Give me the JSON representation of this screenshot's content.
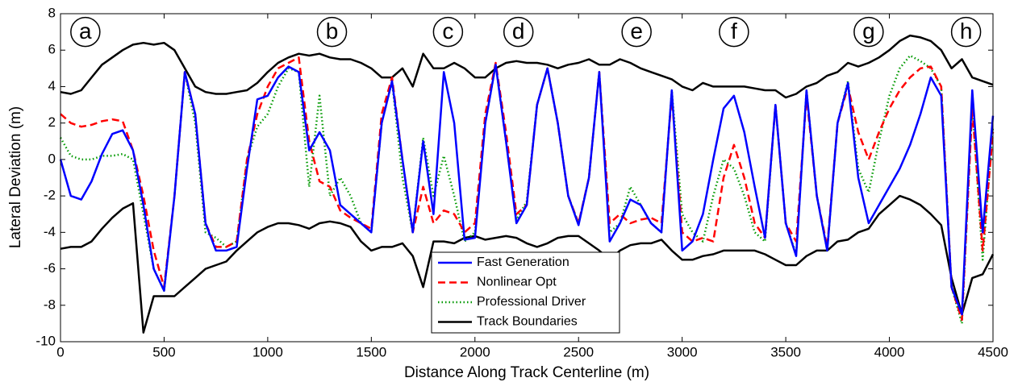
{
  "chart_data": {
    "type": "line",
    "xlabel": "Distance Along Track Centerline (m)",
    "ylabel": "Lateral Deviation (m)",
    "xlim": [
      0,
      4500
    ],
    "ylim": [
      -10,
      8
    ],
    "xticks": [
      0,
      500,
      1000,
      1500,
      2000,
      2500,
      3000,
      3500,
      4000,
      4500
    ],
    "yticks": [
      -10,
      -8,
      -6,
      -4,
      -2,
      0,
      2,
      4,
      6,
      8
    ],
    "legend": "bottom-center",
    "annotations": [
      {
        "text": "a",
        "x": 120,
        "y": 7
      },
      {
        "text": "b",
        "x": 1310,
        "y": 7
      },
      {
        "text": "c",
        "x": 1870,
        "y": 7
      },
      {
        "text": "d",
        "x": 2210,
        "y": 7
      },
      {
        "text": "e",
        "x": 2780,
        "y": 7
      },
      {
        "text": "f",
        "x": 3250,
        "y": 7
      },
      {
        "text": "g",
        "x": 3900,
        "y": 7
      },
      {
        "text": "h",
        "x": 4370,
        "y": 7
      }
    ],
    "x": [
      0,
      50,
      100,
      150,
      200,
      250,
      300,
      350,
      400,
      450,
      500,
      550,
      600,
      650,
      700,
      750,
      800,
      850,
      900,
      950,
      1000,
      1050,
      1100,
      1150,
      1200,
      1250,
      1300,
      1350,
      1400,
      1450,
      1500,
      1550,
      1600,
      1650,
      1700,
      1750,
      1800,
      1850,
      1900,
      1950,
      2000,
      2050,
      2100,
      2150,
      2200,
      2250,
      2300,
      2350,
      2400,
      2450,
      2500,
      2550,
      2600,
      2650,
      2700,
      2750,
      2800,
      2850,
      2900,
      2950,
      3000,
      3050,
      3100,
      3150,
      3200,
      3250,
      3300,
      3350,
      3400,
      3450,
      3500,
      3550,
      3600,
      3650,
      3700,
      3750,
      3800,
      3850,
      3900,
      3950,
      4000,
      4050,
      4100,
      4150,
      4200,
      4250,
      4300,
      4350,
      4400,
      4450,
      4500
    ],
    "series": [
      {
        "name": "Fast Generation",
        "color": "#0000ff",
        "style": "solid",
        "values": [
          0,
          -2,
          -2.2,
          -1.2,
          0.3,
          1.4,
          1.6,
          0.5,
          -2.5,
          -6,
          -7.2,
          -2,
          4.8,
          2.5,
          -3.5,
          -5,
          -5,
          -4.8,
          -0.5,
          3.3,
          3.5,
          4.5,
          5.1,
          4.8,
          0.5,
          1.5,
          0.5,
          -2.5,
          -3,
          -3.5,
          -4,
          2,
          4.3,
          0,
          -4,
          1,
          -3,
          4.8,
          2,
          -4.4,
          -4.3,
          2,
          5.2,
          1,
          -3.5,
          -2.5,
          3,
          5,
          2,
          -2,
          -3.6,
          -1,
          4.8,
          -4.5,
          -3.5,
          -2.2,
          -2.5,
          -3.5,
          -4,
          3.8,
          -5,
          -4.5,
          -3,
          0,
          2.8,
          3.5,
          1.5,
          -1.5,
          -4.3,
          3,
          -3.5,
          -5.3,
          3.8,
          -2,
          -5,
          2,
          4.2,
          -1,
          -3.5,
          -2.5,
          -1.5,
          -0.5,
          0.8,
          2.5,
          4.5,
          3.5,
          -7,
          -8.5,
          3.8,
          -4,
          2.4
        ]
      },
      {
        "name": "Nonlinear Opt",
        "color": "#ff0000",
        "style": "dashed",
        "values": [
          2.5,
          2,
          1.8,
          1.9,
          2.1,
          2.2,
          2.1,
          0.5,
          -2,
          -5,
          -7,
          -2,
          4.8,
          2.5,
          -3.5,
          -4.8,
          -4.8,
          -4.5,
          0,
          2.5,
          4,
          5,
          5.3,
          5.6,
          1,
          -1.2,
          -1.5,
          -2.8,
          -3.2,
          -3.5,
          -3.8,
          2.5,
          4.5,
          0,
          -4,
          -1.5,
          -3.5,
          -2.8,
          -3,
          -4,
          -3.5,
          2.5,
          5.3,
          1.5,
          -3,
          -2.5,
          3,
          5,
          2,
          -2,
          -3.5,
          -1,
          4.8,
          -3.5,
          -3,
          -3.5,
          -3.3,
          -3.2,
          -3.5,
          3.5,
          -4,
          -4.5,
          -4.3,
          -4.5,
          -1,
          0.8,
          -1,
          -3.5,
          -4.3,
          3,
          -3.5,
          -4.5,
          3.5,
          -2,
          -4.8,
          2,
          4,
          1.5,
          0,
          1.5,
          2.8,
          3.8,
          4.5,
          5,
          5.1,
          4,
          -7,
          -8.8,
          2.8,
          -5,
          1.5
        ]
      },
      {
        "name": "Professional Driver",
        "color": "#009900",
        "style": "dotted",
        "values": [
          1.2,
          0.2,
          0,
          0,
          0.2,
          0.2,
          0.3,
          0,
          -3,
          -6,
          -7.2,
          -2,
          4.8,
          2,
          -4,
          -4.3,
          -4.8,
          -4.5,
          0,
          1.8,
          2.5,
          4,
          5,
          4.8,
          -1.5,
          3.5,
          -2,
          -1,
          -2,
          -3.5,
          -4,
          2,
          4.3,
          -1,
          -4,
          1.2,
          -2,
          0.2,
          -2,
          -4.5,
          -4,
          2,
          5.2,
          1,
          -3.3,
          -2.3,
          3,
          5,
          2,
          -2,
          -3.5,
          -1,
          4.8,
          -4,
          -3.5,
          -1.5,
          -2.5,
          -3.5,
          -4,
          3.8,
          -3,
          -4,
          -4.5,
          -2,
          0,
          -0.5,
          -2,
          -4,
          -4.5,
          3,
          -3.5,
          -5.2,
          3.8,
          -2,
          -5,
          2,
          4.3,
          -0.5,
          -1.8,
          1,
          3.5,
          5,
          5.7,
          5.4,
          5,
          4,
          -7,
          -9,
          3,
          -5.5,
          1.8
        ]
      },
      {
        "name": "Track Boundaries",
        "color": "#000000",
        "style": "solid",
        "values": [
          3.7,
          3.6,
          3.8,
          4.5,
          5.2,
          5.6,
          6,
          6.3,
          6.4,
          6.3,
          6.4,
          6,
          5,
          4,
          3.7,
          3.6,
          3.6,
          3.7,
          3.8,
          4.2,
          4.8,
          5.3,
          5.6,
          5.8,
          5.7,
          5.8,
          5.6,
          5.5,
          5.5,
          5.3,
          5,
          4.5,
          4.5,
          5,
          4,
          5.8,
          5,
          5,
          5.3,
          5,
          4.5,
          4.5,
          5,
          5.3,
          5.4,
          5.3,
          5.3,
          5.2,
          5,
          5.2,
          5.3,
          5.5,
          5.2,
          5.2,
          5.5,
          5.3,
          5,
          4.8,
          4.6,
          4.4,
          4,
          3.8,
          4.2,
          4,
          4,
          4,
          4,
          3.9,
          3.8,
          3.8,
          3.4,
          3.6,
          4,
          4.2,
          4.6,
          4.8,
          5.3,
          5.1,
          5.3,
          5.6,
          6,
          6.5,
          6.8,
          6.7,
          6.5,
          6,
          5,
          5.5,
          4.5,
          4.3,
          4.1
        ],
        "lower_values": [
          -4.9,
          -4.8,
          -4.8,
          -4.5,
          -3.8,
          -3.2,
          -2.7,
          -2.4,
          -9.5,
          -7.5,
          -7.5,
          -7.5,
          -7,
          -6.5,
          -6,
          -5.8,
          -5.6,
          -5,
          -4.5,
          -4,
          -3.7,
          -3.5,
          -3.5,
          -3.6,
          -3.8,
          -3.5,
          -3.4,
          -3.5,
          -3.7,
          -4.5,
          -5,
          -4.8,
          -4.8,
          -4.6,
          -5.3,
          -7,
          -4.5,
          -4.5,
          -4.6,
          -4.3,
          -4.2,
          -4.4,
          -4.3,
          -4.2,
          -4.3,
          -4.6,
          -4.8,
          -4.6,
          -4.3,
          -4.2,
          -4.2,
          -4.6,
          -5,
          -5.5,
          -5,
          -4.7,
          -4.6,
          -4.6,
          -4.4,
          -5,
          -5.5,
          -5.5,
          -5.3,
          -5.2,
          -5,
          -5,
          -5,
          -5,
          -5.2,
          -5.5,
          -5.8,
          -5.8,
          -5.3,
          -5,
          -5,
          -4.5,
          -4.4,
          -4,
          -3.8,
          -3,
          -2.5,
          -2,
          -2.2,
          -2.5,
          -3,
          -3.6,
          -6.5,
          -8.5,
          -6.5,
          -6.3,
          -5.2
        ]
      }
    ]
  }
}
